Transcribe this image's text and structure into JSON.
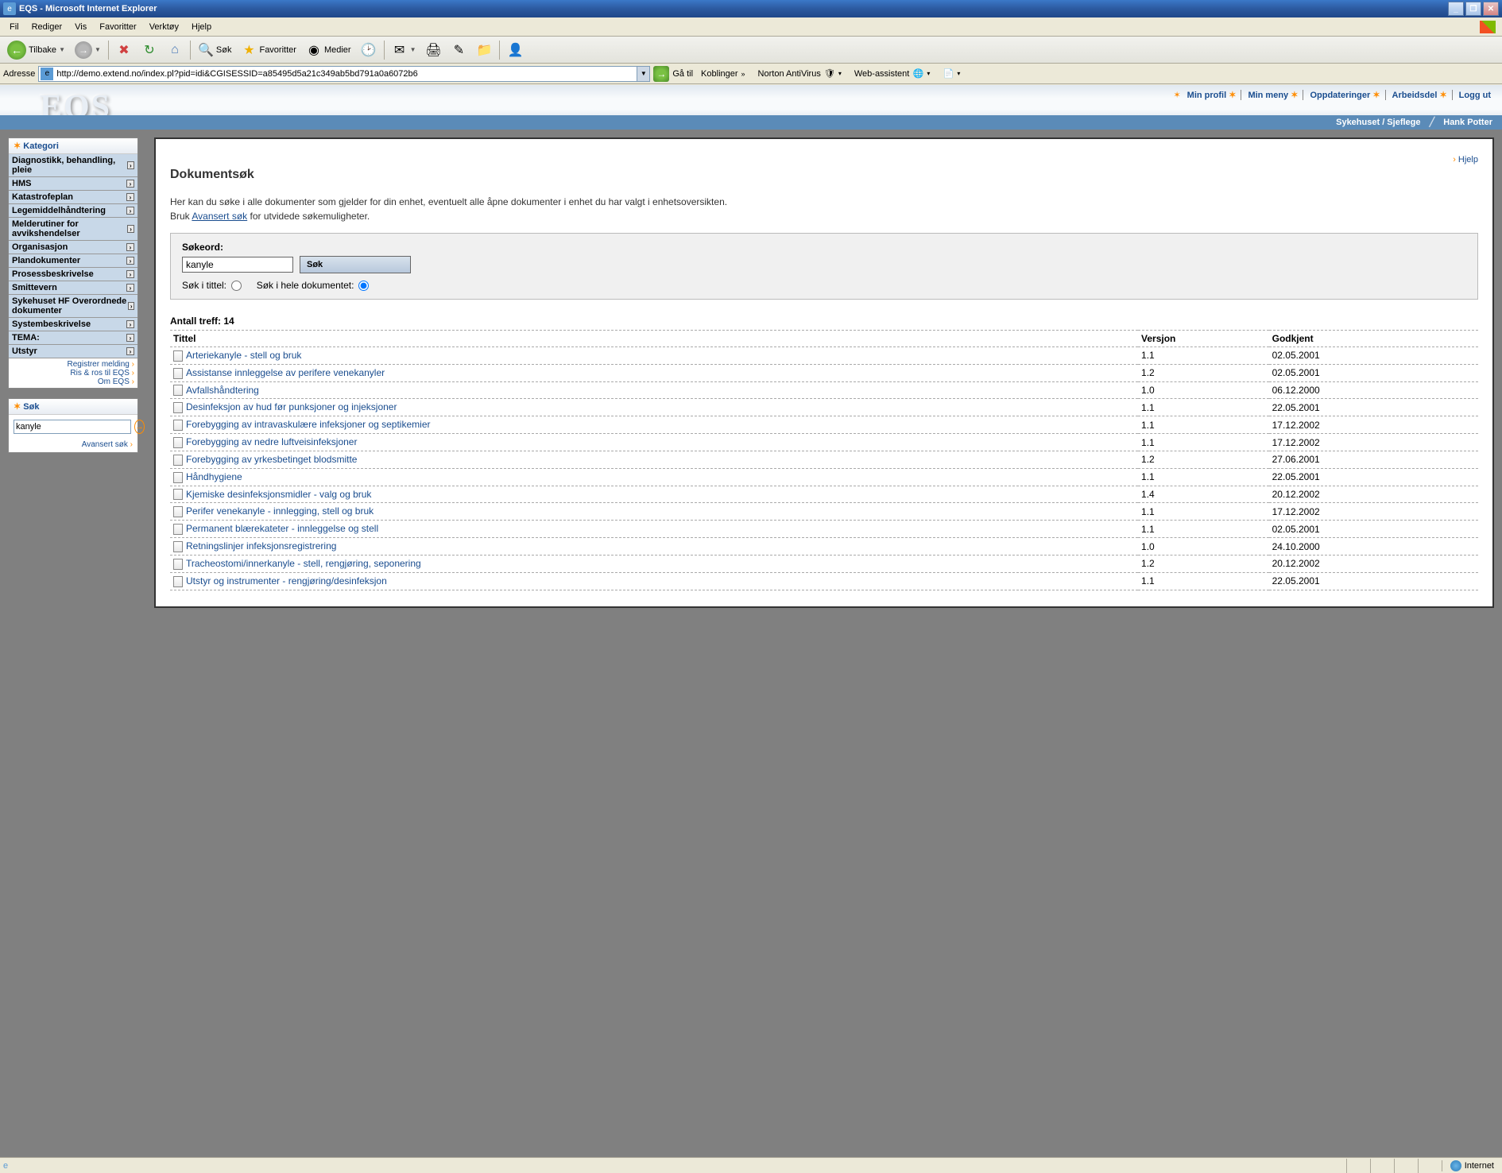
{
  "window": {
    "title": "EQS - Microsoft Internet Explorer"
  },
  "menubar": {
    "file": "Fil",
    "edit": "Rediger",
    "view": "Vis",
    "favorites": "Favoritter",
    "tools": "Verktøy",
    "help": "Hjelp"
  },
  "toolbar": {
    "back": "Tilbake",
    "search": "Søk",
    "favorites": "Favoritter",
    "media": "Medier"
  },
  "addressbar": {
    "label": "Adresse",
    "url": "http://demo.extend.no/index.pl?pid=idi&CGISESSID=a85495d5a21c349ab5bd791a0a6072b6",
    "go": "Gå til",
    "koblinger": "Koblinger",
    "norton": "Norton AntiVirus",
    "assistant": "Web-assistent"
  },
  "eqs": {
    "logo": "EQS",
    "nav": {
      "profile": "Min profil",
      "menu": "Min meny",
      "updates": "Oppdateringer",
      "workspace": "Arbeidsdel",
      "logout": "Logg ut"
    },
    "context": {
      "org": "Sykehuset / Sjeflege",
      "user": "Hank Potter"
    }
  },
  "sidebar": {
    "kategori_title": "Kategori",
    "categories": [
      "Diagnostikk, behandling, pleie",
      "HMS",
      "Katastrofeplan",
      "Legemiddelhåndtering",
      "Melderutiner for avvikshendelser",
      "Organisasjon",
      "Plandokumenter",
      "Prosessbeskrivelse",
      "Smittevern",
      "Sykehuset HF Overordnede dokumenter",
      "Systembeskrivelse",
      "TEMA:",
      "Utstyr"
    ],
    "links": {
      "register": "Registrer melding",
      "feedback": "Ris & ros til EQS",
      "about": "Om EQS"
    },
    "search_title": "Søk",
    "search_value": "kanyle",
    "advanced": "Avansert søk"
  },
  "main": {
    "help": "Hjelp",
    "title": "Dokumentsøk",
    "intro1": "Her kan du søke i alle dokumenter som gjelder for din enhet, eventuelt alle åpne dokumenter i enhet du har valgt i enhetsoversikten.",
    "intro2_prefix": "Bruk ",
    "intro2_link": "Avansert søk",
    "intro2_suffix": " for utvidede søkemuligheter.",
    "searchbox": {
      "label": "Søkeord:",
      "value": "kanyle",
      "button": "Søk",
      "opt_title": "Søk i tittel:",
      "opt_full": "Søk i hele dokumentet:"
    },
    "results": {
      "count_label": "Antall treff: 14",
      "columns": {
        "title": "Tittel",
        "version": "Versjon",
        "approved": "Godkjent"
      },
      "rows": [
        {
          "title": "Arteriekanyle - stell og bruk",
          "version": "1.1",
          "approved": "02.05.2001"
        },
        {
          "title": "Assistanse innleggelse av perifere venekanyler",
          "version": "1.2",
          "approved": "02.05.2001"
        },
        {
          "title": "Avfallshåndtering",
          "version": "1.0",
          "approved": "06.12.2000"
        },
        {
          "title": "Desinfeksjon av hud før punksjoner og injeksjoner",
          "version": "1.1",
          "approved": "22.05.2001"
        },
        {
          "title": "Forebygging av intravaskulære infeksjoner og septikemier",
          "version": "1.1",
          "approved": "17.12.2002"
        },
        {
          "title": "Forebygging av nedre luftveisinfeksjoner",
          "version": "1.1",
          "approved": "17.12.2002"
        },
        {
          "title": "Forebygging av yrkesbetinget blodsmitte",
          "version": "1.2",
          "approved": "27.06.2001"
        },
        {
          "title": "Håndhygiene",
          "version": "1.1",
          "approved": "22.05.2001"
        },
        {
          "title": "Kjemiske desinfeksjonsmidler - valg og bruk",
          "version": "1.4",
          "approved": "20.12.2002"
        },
        {
          "title": "Perifer venekanyle - innlegging, stell og bruk",
          "version": "1.1",
          "approved": "17.12.2002"
        },
        {
          "title": "Permanent blærekateter - innleggelse og stell",
          "version": "1.1",
          "approved": "02.05.2001"
        },
        {
          "title": "Retningslinjer infeksjonsregistrering",
          "version": "1.0",
          "approved": "24.10.2000"
        },
        {
          "title": "Tracheostomi/innerkanyle - stell, rengjøring, seponering",
          "version": "1.2",
          "approved": "20.12.2002"
        },
        {
          "title": "Utstyr og instrumenter - rengjøring/desinfeksjon",
          "version": "1.1",
          "approved": "22.05.2001"
        }
      ]
    }
  },
  "statusbar": {
    "zone": "Internet"
  }
}
